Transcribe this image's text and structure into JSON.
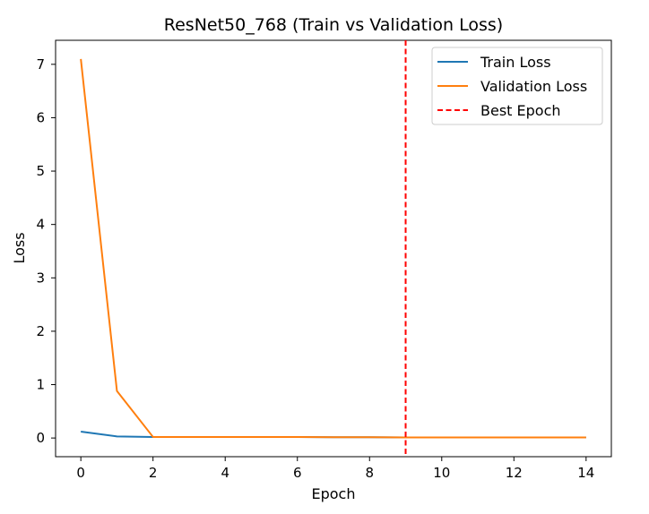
{
  "chart_data": {
    "type": "line",
    "title": "ResNet50_768 (Train vs Validation Loss)",
    "xlabel": "Epoch",
    "ylabel": "Loss",
    "xlim": [
      -0.7,
      14.7
    ],
    "ylim": [
      -0.35,
      7.45
    ],
    "xticks": [
      0,
      2,
      4,
      6,
      8,
      10,
      12,
      14
    ],
    "yticks": [
      0,
      1,
      2,
      3,
      4,
      5,
      6,
      7
    ],
    "grid": false,
    "legend_position": "upper right",
    "series": [
      {
        "name": "Train Loss",
        "color": "#1f77b4",
        "style": "solid",
        "x": [
          0,
          1,
          2,
          3,
          4,
          5,
          6,
          7,
          8,
          9,
          10,
          11,
          12,
          13,
          14
        ],
        "y": [
          0.12,
          0.03,
          0.02,
          0.02,
          0.02,
          0.02,
          0.02,
          0.015,
          0.015,
          0.01,
          0.01,
          0.01,
          0.01,
          0.01,
          0.01
        ]
      },
      {
        "name": "Validation Loss",
        "color": "#ff7f0e",
        "style": "solid",
        "x": [
          0,
          1,
          2,
          3,
          4,
          5,
          6,
          7,
          8,
          9,
          10,
          11,
          12,
          13,
          14
        ],
        "y": [
          7.1,
          0.88,
          0.02,
          0.02,
          0.02,
          0.02,
          0.02,
          0.015,
          0.015,
          0.01,
          0.01,
          0.01,
          0.01,
          0.01,
          0.01
        ]
      }
    ],
    "best_epoch": {
      "name": "Best Epoch",
      "x": 9,
      "color": "#ff0000",
      "style": "dashed"
    }
  }
}
